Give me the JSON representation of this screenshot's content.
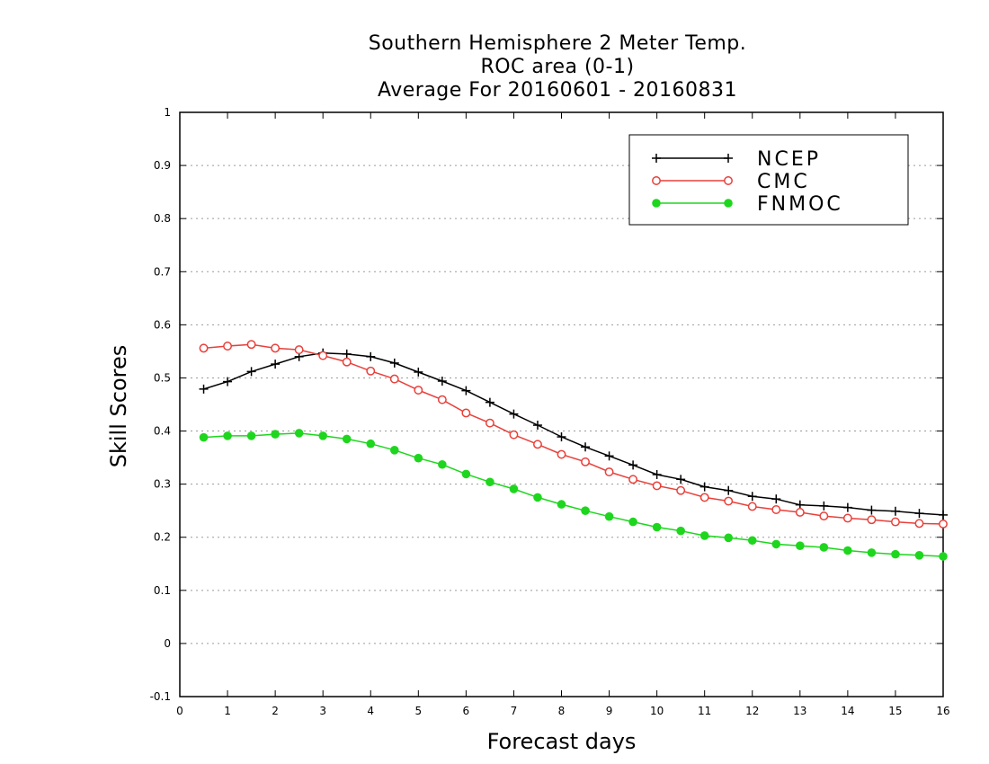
{
  "title_lines": [
    "Southern Hemisphere 2 Meter Temp.",
    "ROC area (0-1)",
    "Average For 20160601 - 20160831"
  ],
  "chart_data": {
    "type": "line",
    "xlabel": "Forecast days",
    "ylabel": "Skill Scores",
    "xlim": [
      0,
      16
    ],
    "ylim": [
      -0.1,
      1
    ],
    "xticks": [
      "0",
      "1",
      "2",
      "3",
      "4",
      "5",
      "6",
      "7",
      "8",
      "9",
      "10",
      "11",
      "12",
      "13",
      "14",
      "15",
      "16"
    ],
    "yticks": [
      "-0.1",
      "0",
      "0.1",
      "0.2",
      "0.3",
      "0.4",
      "0.5",
      "0.6",
      "0.7",
      "0.8",
      "0.9",
      "1"
    ],
    "grid": "horizontal dotted",
    "legend_position": "top-right",
    "x": [
      0.5,
      1,
      1.5,
      2,
      2.5,
      3,
      3.5,
      4,
      4.5,
      5,
      5.5,
      6,
      6.5,
      7,
      7.5,
      8,
      8.5,
      9,
      9.5,
      10,
      10.5,
      11,
      11.5,
      12,
      12.5,
      13,
      13.5,
      14,
      14.5,
      15,
      15.5,
      16
    ],
    "series": [
      {
        "name": "NCEP",
        "color": "#000000",
        "marker": "plus",
        "values": [
          0.479,
          0.493,
          0.512,
          0.526,
          0.54,
          0.547,
          0.545,
          0.54,
          0.528,
          0.511,
          0.494,
          0.476,
          0.454,
          0.432,
          0.411,
          0.389,
          0.37,
          0.353,
          0.336,
          0.318,
          0.309,
          0.295,
          0.288,
          0.277,
          0.272,
          0.261,
          0.259,
          0.256,
          0.251,
          0.249,
          0.245,
          0.242
        ]
      },
      {
        "name": "CMC",
        "color": "#e8403a",
        "marker": "open-circle",
        "values": [
          0.556,
          0.56,
          0.563,
          0.556,
          0.553,
          0.542,
          0.53,
          0.513,
          0.498,
          0.477,
          0.459,
          0.434,
          0.415,
          0.393,
          0.375,
          0.356,
          0.342,
          0.323,
          0.309,
          0.297,
          0.288,
          0.275,
          0.268,
          0.258,
          0.252,
          0.247,
          0.24,
          0.236,
          0.233,
          0.229,
          0.226,
          0.225
        ]
      },
      {
        "name": "FNMOC",
        "color": "#1ed61e",
        "marker": "filled-circle",
        "values": [
          0.388,
          0.391,
          0.391,
          0.394,
          0.396,
          0.391,
          0.385,
          0.376,
          0.364,
          0.349,
          0.337,
          0.319,
          0.304,
          0.291,
          0.275,
          0.262,
          0.25,
          0.239,
          0.229,
          0.219,
          0.212,
          0.203,
          0.199,
          0.194,
          0.187,
          0.184,
          0.181,
          0.175,
          0.171,
          0.168,
          0.166,
          0.164
        ]
      }
    ]
  }
}
